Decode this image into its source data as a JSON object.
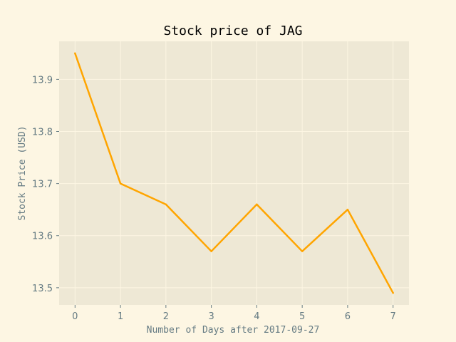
{
  "chart_data": {
    "type": "line",
    "title": "Stock price of JAG",
    "xlabel": "Number of Days after 2017-09-27",
    "ylabel": "Stock Price (USD)",
    "x": [
      0,
      1,
      2,
      3,
      4,
      5,
      6,
      7
    ],
    "series": [
      {
        "values": [
          13.95,
          13.7,
          13.66,
          13.57,
          13.66,
          13.57,
          13.65,
          13.49
        ]
      }
    ],
    "xticks": [
      "0",
      "1",
      "2",
      "3",
      "4",
      "5",
      "6",
      "7"
    ],
    "yticks": [
      "13.5",
      "13.6",
      "13.7",
      "13.8",
      "13.9"
    ],
    "xlim": [
      -0.35,
      7.35
    ],
    "ylim": [
      13.467,
      13.973
    ],
    "grid": true,
    "colors": {
      "figure_bg": "#fdf6e3",
      "plot_bg": "#eee8d5",
      "grid": "#fdf6e3",
      "line": "#ffa500",
      "text": "#657b83"
    }
  }
}
